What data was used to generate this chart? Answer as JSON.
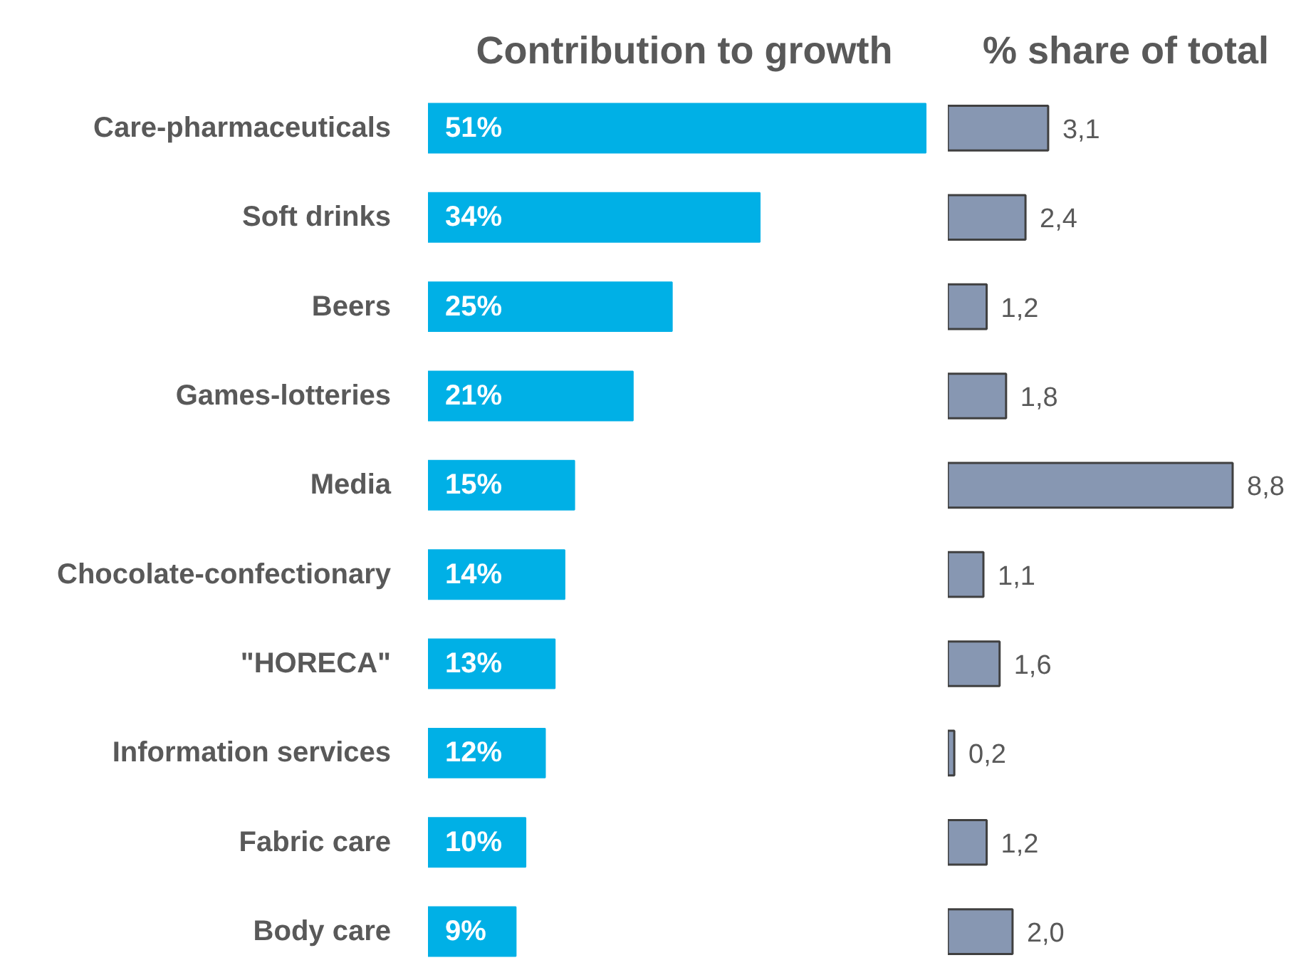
{
  "chart_data": [
    {
      "type": "bar",
      "orientation": "horizontal",
      "title": "Contribution to growth",
      "categories": [
        "Care-pharmaceuticals",
        "Soft drinks",
        "Beers",
        "Games-lotteries",
        "Media",
        "Chocolate-confectionary",
        "\"HORECA\"",
        "Information services",
        "Fabric care",
        "Body care"
      ],
      "values": [
        51,
        34,
        25,
        21,
        15,
        14,
        13,
        12,
        10,
        9
      ],
      "value_labels": [
        "51%",
        "34%",
        "25%",
        "21%",
        "15%",
        "14%",
        "13%",
        "12%",
        "10%",
        "9%"
      ],
      "color": "#00b0e6"
    },
    {
      "type": "bar",
      "orientation": "horizontal",
      "title": "% share of total",
      "values": [
        3.1,
        2.4,
        1.2,
        1.8,
        8.8,
        1.1,
        1.6,
        0.2,
        1.2,
        2.0
      ],
      "value_labels": [
        "3,1",
        "2,4",
        "1,2",
        "1,8",
        "8,8",
        "1,1",
        "1,6",
        "0,2",
        "1,2",
        "2,0"
      ],
      "color": "#8797b2"
    }
  ]
}
